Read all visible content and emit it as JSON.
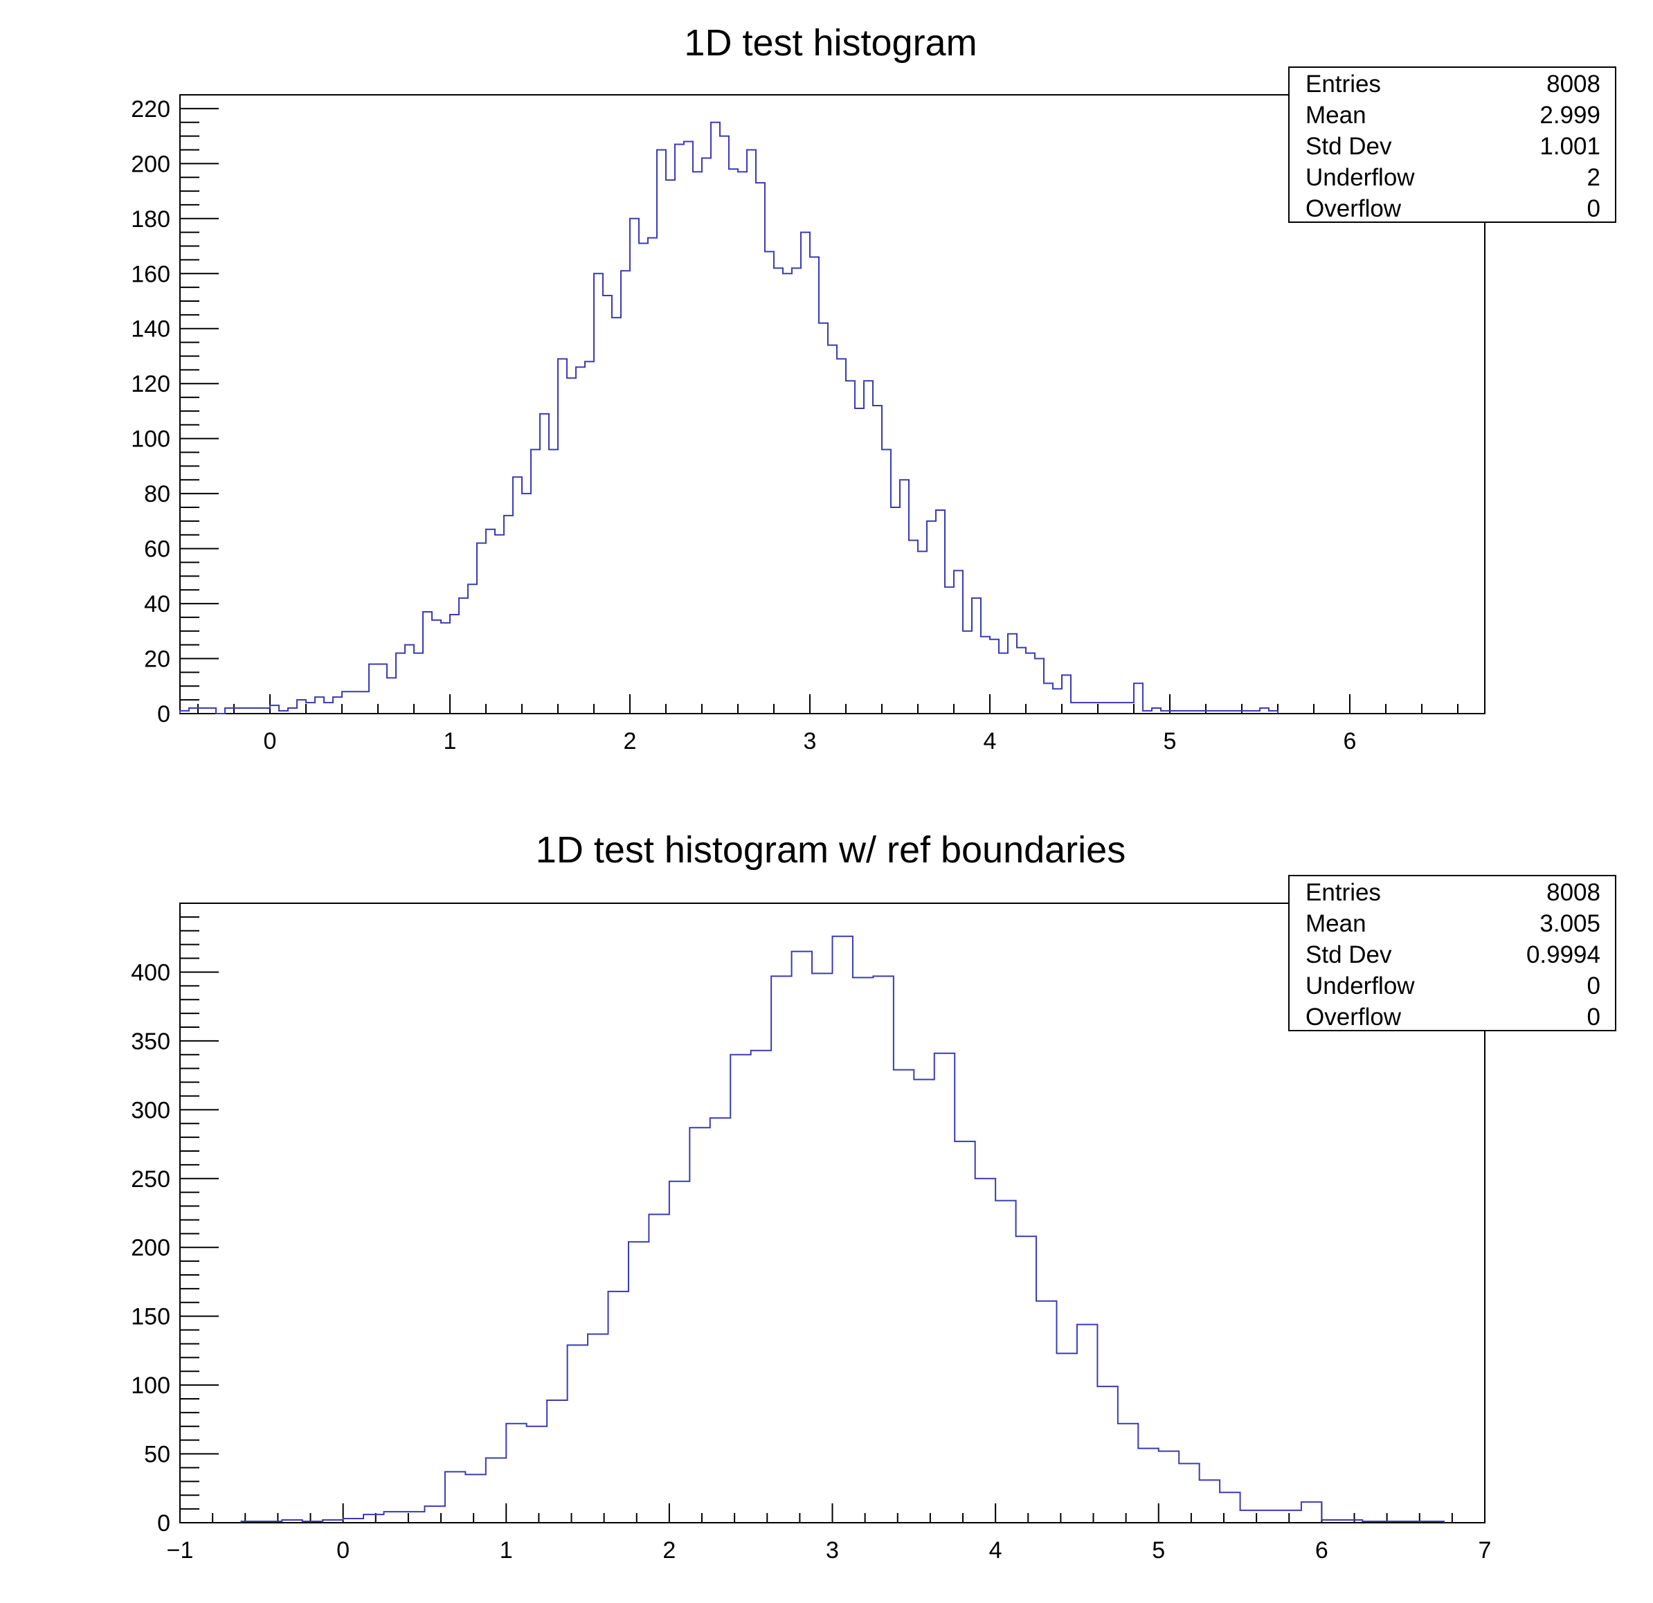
{
  "colors": {
    "histogram_line": "#3a3ab4",
    "axis": "#000000",
    "background": "#ffffff"
  },
  "chart_data": [
    {
      "type": "bar",
      "title": "1D test histogram",
      "xlabel": "",
      "ylabel": "",
      "xlim": [
        -0.5,
        6.75
      ],
      "ylim": [
        0,
        225
      ],
      "x_ticks": [
        0,
        1,
        2,
        3,
        4,
        5,
        6
      ],
      "x_tick_labels": [
        "0",
        "1",
        "2",
        "3",
        "4",
        "5",
        "6"
      ],
      "y_ticks": [
        0,
        20,
        40,
        60,
        80,
        100,
        120,
        140,
        160,
        180,
        200,
        220
      ],
      "y_tick_labels": [
        "0",
        "20",
        "40",
        "60",
        "80",
        "100",
        "120",
        "140",
        "160",
        "180",
        "200",
        "220"
      ],
      "bin_edges_start": -0.5,
      "bin_width": 0.05,
      "values": [
        1,
        2,
        2,
        2,
        0,
        2,
        2,
        2,
        2,
        2,
        3,
        1,
        2,
        5,
        4,
        6,
        4,
        6,
        8,
        8,
        8,
        18,
        18,
        13,
        22,
        25,
        22,
        37,
        34,
        33,
        36,
        42,
        47,
        62,
        67,
        65,
        72,
        86,
        80,
        96,
        109,
        96,
        129,
        122,
        126,
        128,
        160,
        152,
        144,
        161,
        180,
        171,
        173,
        205,
        194,
        207,
        208,
        197,
        202,
        215,
        210,
        198,
        197,
        205,
        193,
        168,
        162,
        160,
        162,
        175,
        166,
        142,
        134,
        129,
        121,
        111,
        121,
        112,
        96,
        75,
        85,
        63,
        59,
        70,
        74,
        46,
        52,
        30,
        42,
        28,
        27,
        22,
        29,
        24,
        22,
        20,
        11,
        9,
        14,
        4,
        4,
        4,
        4,
        4,
        4,
        4,
        11,
        1,
        2,
        1,
        1,
        1,
        1,
        1,
        1,
        1,
        1,
        1,
        1,
        1,
        2,
        1
      ],
      "legend": "top-right",
      "stats": [
        {
          "label": "Entries",
          "value": "8008"
        },
        {
          "label": "Mean",
          "value": "2.999"
        },
        {
          "label": "Std Dev",
          "value": "1.001"
        },
        {
          "label": "Underflow",
          "value": "2"
        },
        {
          "label": "Overflow",
          "value": "0"
        }
      ]
    },
    {
      "type": "bar",
      "title": "1D test histogram w/ ref boundaries",
      "xlabel": "",
      "ylabel": "",
      "xlim": [
        -1,
        7
      ],
      "ylim": [
        0,
        450
      ],
      "x_ticks": [
        -1,
        0,
        1,
        2,
        3,
        4,
        5,
        6,
        7
      ],
      "x_tick_labels": [
        "−1",
        "0",
        "1",
        "2",
        "3",
        "4",
        "5",
        "6",
        "7"
      ],
      "y_ticks": [
        0,
        50,
        100,
        150,
        200,
        250,
        300,
        350,
        400
      ],
      "y_tick_labels": [
        "0",
        "50",
        "100",
        "150",
        "200",
        "250",
        "300",
        "350",
        "400"
      ],
      "bin_edges_start": -0.625,
      "bin_width": 0.125,
      "values": [
        1,
        1,
        2,
        1,
        2,
        3,
        6,
        8,
        8,
        12,
        37,
        35,
        47,
        72,
        70,
        89,
        129,
        137,
        168,
        204,
        224,
        248,
        287,
        294,
        340,
        343,
        397,
        415,
        399,
        426,
        396,
        397,
        329,
        322,
        341,
        277,
        250,
        234,
        208,
        161,
        123,
        144,
        99,
        72,
        54,
        52,
        43,
        31,
        22,
        9,
        9,
        9,
        15,
        2,
        2,
        1,
        1,
        1,
        1
      ],
      "legend": "top-right",
      "stats": [
        {
          "label": "Entries",
          "value": "8008"
        },
        {
          "label": "Mean",
          "value": "3.005"
        },
        {
          "label": "Std Dev",
          "value": "0.9994"
        },
        {
          "label": "Underflow",
          "value": "0"
        },
        {
          "label": "Overflow",
          "value": "0"
        }
      ]
    }
  ]
}
